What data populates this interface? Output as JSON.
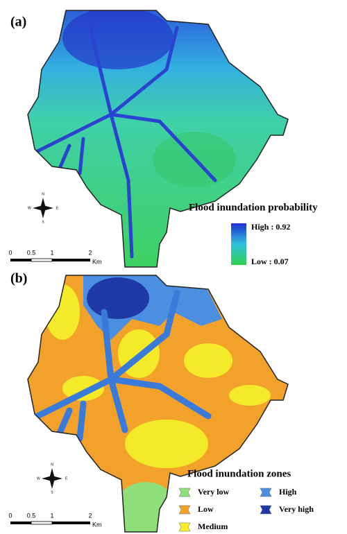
{
  "panels": [
    {
      "label": "(a)",
      "legend": {
        "title": "Flood inundation probability",
        "high": "High : 0.92",
        "low": "Low : 0.07"
      },
      "scale_bar": {
        "ticks": [
          "0",
          "0.5",
          "1",
          "2"
        ],
        "unit": "Km"
      },
      "north_arrow": {
        "n": "N",
        "s": "S",
        "e": "E",
        "w": "W"
      }
    },
    {
      "label": "(b)",
      "legend": {
        "title": "Flood inundation zones",
        "items": [
          "Very low",
          "Low",
          "Medium",
          "High",
          "Very high"
        ]
      },
      "scale_bar": {
        "ticks": [
          "0",
          "0.5",
          "1",
          "2"
        ],
        "unit": "Km"
      },
      "north_arrow": {
        "n": "N",
        "s": "S",
        "e": "E",
        "w": "W"
      }
    }
  ]
}
